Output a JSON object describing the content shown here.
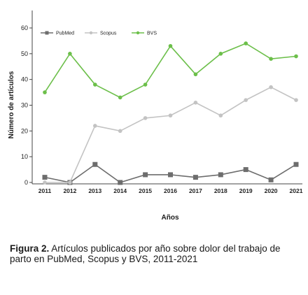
{
  "chart_data": {
    "type": "line",
    "categories": [
      "2011",
      "2012",
      "2013",
      "2014",
      "2015",
      "2016",
      "2017",
      "2018",
      "2019",
      "2020",
      "2021"
    ],
    "series": [
      {
        "name": "PubMed",
        "color": "#6d6d6d",
        "marker": "square",
        "values": [
          2,
          0,
          7,
          0,
          3,
          3,
          2,
          3,
          5,
          1,
          7
        ]
      },
      {
        "name": "Scopus",
        "color": "#c3c3c3",
        "marker": "circle",
        "values": [
          0,
          0,
          22,
          20,
          25,
          26,
          31,
          26,
          32,
          37,
          32
        ]
      },
      {
        "name": "BVS",
        "color": "#6cbf4a",
        "marker": "circle",
        "values": [
          35,
          50,
          38,
          33,
          38,
          53,
          42,
          50,
          54,
          48,
          49
        ]
      }
    ],
    "yticks": [
      0,
      10,
      20,
      30,
      40,
      50,
      60
    ],
    "ylim": [
      0,
      60
    ],
    "xlabel": "Años",
    "ylabel": "Número de artículos",
    "legend_position": "top-left",
    "grid": false
  },
  "caption": {
    "label": "Figura 2.",
    "text": "Artículos publicados por año sobre dolor del trabajo de parto en PubMed, Scopus y BVS, 2011-2021"
  }
}
